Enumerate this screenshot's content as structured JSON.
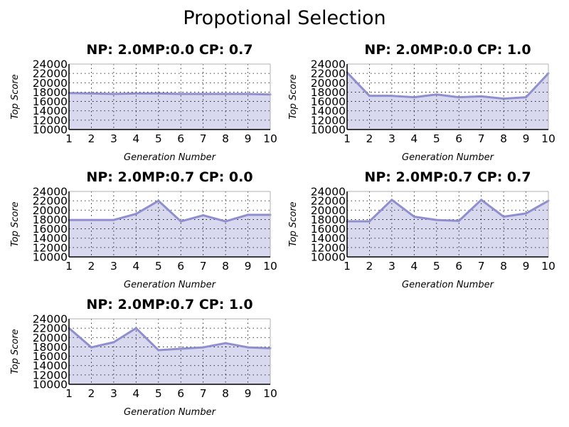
{
  "suptitle": "Propotional Selection",
  "colors": {
    "fill": "#d8d8ef",
    "line": "#8f8fcf"
  },
  "chart_data": [
    {
      "type": "area",
      "title": "NP: 2.0MP:0.0 CP: 0.7",
      "xlabel": "Generation Number",
      "ylabel": "Top Score",
      "x": [
        1,
        2,
        3,
        4,
        5,
        6,
        7,
        8,
        9,
        10
      ],
      "values": [
        17800,
        17700,
        17600,
        17700,
        17700,
        17600,
        17600,
        17600,
        17600,
        17500
      ],
      "xlim": [
        1,
        10
      ],
      "ylim": [
        10000,
        24000
      ],
      "yticks": [
        "10000",
        "12000",
        "14000",
        "16000",
        "18000",
        "20000",
        "22000",
        "24000"
      ],
      "xticks": [
        "1",
        "2",
        "3",
        "4",
        "5",
        "6",
        "7",
        "8",
        "9",
        "10"
      ],
      "grid": true
    },
    {
      "type": "area",
      "title": "NP: 2.0MP:0.0 CP: 1.0",
      "xlabel": "Generation Number",
      "ylabel": "Top Score",
      "x": [
        1,
        2,
        3,
        4,
        5,
        6,
        7,
        8,
        9,
        10
      ],
      "values": [
        22200,
        17200,
        17200,
        16900,
        17500,
        16900,
        17100,
        16600,
        16900,
        22000
      ],
      "xlim": [
        1,
        10
      ],
      "ylim": [
        10000,
        24000
      ],
      "yticks": [
        "10000",
        "12000",
        "14000",
        "16000",
        "18000",
        "20000",
        "22000",
        "24000"
      ],
      "xticks": [
        "1",
        "2",
        "3",
        "4",
        "5",
        "6",
        "7",
        "8",
        "9",
        "10"
      ],
      "grid": true
    },
    {
      "type": "area",
      "title": "NP: 2.0MP:0.7 CP: 0.0",
      "xlabel": "Generation Number",
      "ylabel": "Top Score",
      "x": [
        1,
        2,
        3,
        4,
        5,
        6,
        7,
        8,
        9,
        10
      ],
      "values": [
        17900,
        17900,
        17900,
        19200,
        22000,
        17600,
        18900,
        17600,
        19000,
        19000
      ],
      "xlim": [
        1,
        10
      ],
      "ylim": [
        10000,
        24000
      ],
      "yticks": [
        "10000",
        "12000",
        "14000",
        "16000",
        "18000",
        "20000",
        "22000",
        "24000"
      ],
      "xticks": [
        "1",
        "2",
        "3",
        "4",
        "5",
        "6",
        "7",
        "8",
        "9",
        "10"
      ],
      "grid": true
    },
    {
      "type": "area",
      "title": "NP: 2.0MP:0.7 CP: 0.7",
      "xlabel": "Generation Number",
      "ylabel": "Top Score",
      "x": [
        1,
        2,
        3,
        4,
        5,
        6,
        7,
        8,
        9,
        10
      ],
      "values": [
        17600,
        17600,
        22200,
        18600,
        17900,
        17700,
        22200,
        18600,
        19300,
        22000
      ],
      "xlim": [
        1,
        10
      ],
      "ylim": [
        10000,
        24000
      ],
      "yticks": [
        "10000",
        "12000",
        "14000",
        "16000",
        "18000",
        "20000",
        "22000",
        "24000"
      ],
      "xticks": [
        "1",
        "2",
        "3",
        "4",
        "5",
        "6",
        "7",
        "8",
        "9",
        "10"
      ],
      "grid": true
    },
    {
      "type": "area",
      "title": "NP: 2.0MP:0.7 CP: 1.0",
      "xlabel": "Generation Number",
      "ylabel": "Top Score",
      "x": [
        1,
        2,
        3,
        4,
        5,
        6,
        7,
        8,
        9,
        10
      ],
      "values": [
        22000,
        17900,
        19000,
        22000,
        17300,
        17600,
        17900,
        18800,
        17900,
        17700
      ],
      "xlim": [
        1,
        10
      ],
      "ylim": [
        10000,
        24000
      ],
      "yticks": [
        "10000",
        "12000",
        "14000",
        "16000",
        "18000",
        "20000",
        "22000",
        "24000"
      ],
      "xticks": [
        "1",
        "2",
        "3",
        "4",
        "5",
        "6",
        "7",
        "8",
        "9",
        "10"
      ],
      "grid": true
    }
  ]
}
